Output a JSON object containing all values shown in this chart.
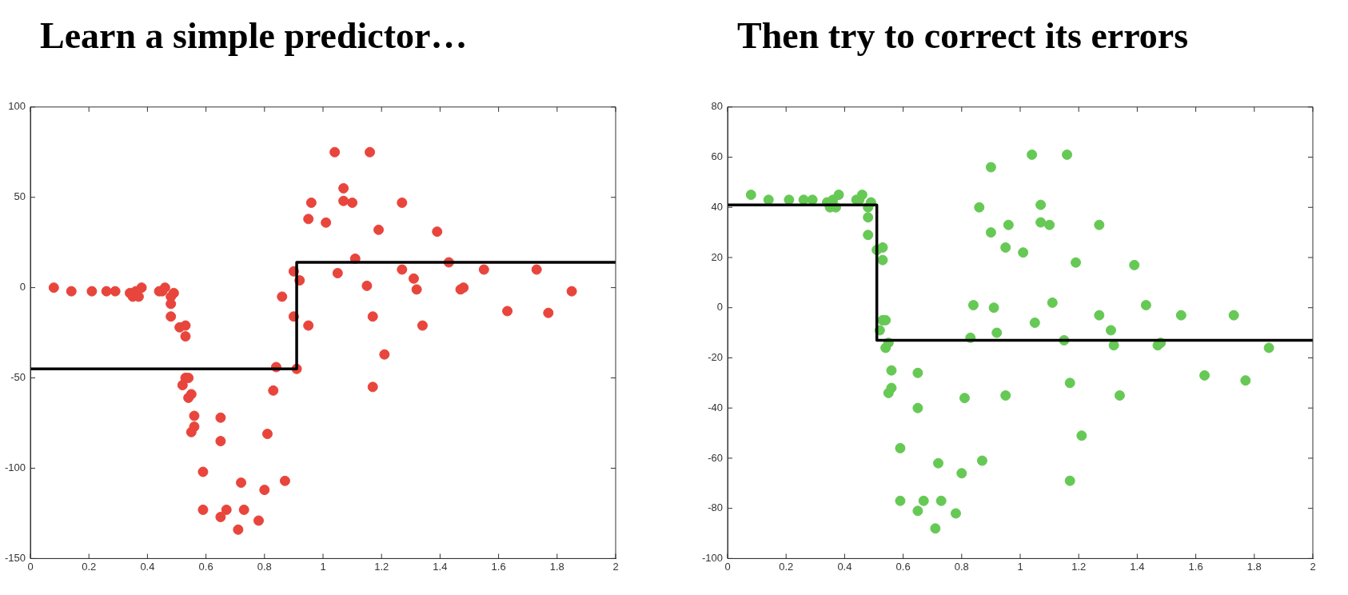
{
  "chart_data": [
    {
      "type": "scatter",
      "title": "Learn a simple predictor…",
      "marker": "circle",
      "grid": false,
      "legend": false,
      "xlim": [
        0,
        2
      ],
      "xticks": [
        0,
        0.2,
        0.4,
        0.6,
        0.8,
        1,
        1.2,
        1.4,
        1.6,
        1.8,
        2
      ],
      "ylim": [
        -150,
        100
      ],
      "yticks": [
        -150,
        -100,
        -50,
        0,
        50,
        100
      ],
      "series": [
        {
          "type": "scatter",
          "color": "#e8453c",
          "x": [
            0.08,
            0.14,
            0.21,
            0.26,
            0.29,
            0.34,
            0.35,
            0.36,
            0.37,
            0.38,
            0.44,
            0.45,
            0.46,
            0.49,
            0.48,
            0.48,
            0.48,
            0.51,
            0.53,
            0.53,
            0.52,
            0.53,
            0.54,
            0.54,
            0.55,
            0.56,
            0.56,
            0.55,
            0.59,
            0.59,
            0.65,
            0.65,
            0.65,
            0.67,
            0.71,
            0.72,
            0.73,
            0.78,
            0.8,
            0.81,
            0.83,
            0.84,
            0.86,
            0.87,
            0.9,
            0.9,
            0.91,
            0.92,
            0.95,
            0.95,
            0.96,
            1.01,
            1.04,
            1.05,
            1.07,
            1.07,
            1.1,
            1.11,
            1.15,
            1.16,
            1.17,
            1.17,
            1.19,
            1.21,
            1.27,
            1.27,
            1.31,
            1.32,
            1.34,
            1.39,
            1.43,
            1.47,
            1.48,
            1.55,
            1.63,
            1.73,
            1.77,
            1.85
          ],
          "values": [
            0,
            -2,
            -2,
            -2,
            -2,
            -3,
            -5,
            -2,
            -5,
            0,
            -2,
            -2,
            0,
            -3,
            -5,
            -9,
            -16,
            -22,
            -21,
            -27,
            -54,
            -50,
            -50,
            -61,
            -59,
            -71,
            -77,
            -80,
            -102,
            -123,
            -72,
            -85,
            -127,
            -123,
            -134,
            -108,
            -123,
            -129,
            -112,
            -81,
            -57,
            -44,
            -5,
            -107,
            -16,
            9,
            -45,
            4,
            -21,
            38,
            47,
            36,
            75,
            8,
            55,
            48,
            47,
            16,
            1,
            75,
            -16,
            -55,
            32,
            -37,
            10,
            47,
            5,
            -1,
            -21,
            31,
            14,
            -1,
            0,
            10,
            -13,
            10,
            -14,
            -2
          ]
        },
        {
          "type": "step",
          "marker": "none",
          "color": "#000000",
          "x": [
            0,
            0.91,
            2
          ],
          "values": [
            -45,
            14,
            14
          ]
        }
      ]
    },
    {
      "type": "scatter",
      "title": "Then try to correct its errors",
      "marker": "circle",
      "grid": false,
      "legend": false,
      "xlim": [
        0,
        2
      ],
      "xticks": [
        0,
        0.2,
        0.4,
        0.6,
        0.8,
        1,
        1.2,
        1.4,
        1.6,
        1.8,
        2
      ],
      "ylim": [
        -100,
        80
      ],
      "yticks": [
        -100,
        -80,
        -60,
        -40,
        -20,
        0,
        20,
        40,
        60,
        80
      ],
      "series": [
        {
          "type": "scatter",
          "color": "#66c955",
          "x": [
            0.08,
            0.14,
            0.21,
            0.26,
            0.29,
            0.34,
            0.35,
            0.36,
            0.37,
            0.38,
            0.44,
            0.45,
            0.46,
            0.49,
            0.48,
            0.48,
            0.48,
            0.51,
            0.53,
            0.53,
            0.52,
            0.53,
            0.54,
            0.54,
            0.55,
            0.56,
            0.56,
            0.55,
            0.59,
            0.59,
            0.65,
            0.65,
            0.65,
            0.67,
            0.71,
            0.72,
            0.73,
            0.78,
            0.8,
            0.81,
            0.83,
            0.84,
            0.86,
            0.87,
            0.9,
            0.9,
            0.91,
            0.92,
            0.95,
            0.95,
            0.96,
            1.01,
            1.04,
            1.05,
            1.07,
            1.07,
            1.1,
            1.11,
            1.15,
            1.16,
            1.17,
            1.17,
            1.19,
            1.21,
            1.27,
            1.27,
            1.31,
            1.32,
            1.34,
            1.39,
            1.43,
            1.47,
            1.48,
            1.55,
            1.63,
            1.73,
            1.77,
            1.85
          ],
          "values": [
            45,
            43,
            43,
            43,
            43,
            42,
            40,
            43,
            40,
            45,
            43,
            43,
            45,
            42,
            40,
            36,
            29,
            23,
            24,
            19,
            -9,
            -5,
            -5,
            -16,
            -14,
            -25,
            -32,
            -34,
            -56,
            -77,
            -26,
            -40,
            -81,
            -77,
            -88,
            -62,
            -77,
            -82,
            -66,
            -36,
            -12,
            1,
            40,
            -61,
            30,
            56,
            0,
            -10,
            -35,
            24,
            33,
            22,
            61,
            -6,
            41,
            34,
            33,
            2,
            -13,
            61,
            -30,
            -69,
            18,
            -51,
            -3,
            33,
            -9,
            -15,
            -35,
            17,
            1,
            -15,
            -14,
            -3,
            -27,
            -3,
            -29,
            -16
          ]
        },
        {
          "type": "step",
          "marker": "none",
          "color": "#000000",
          "x": [
            0,
            0.51,
            2
          ],
          "values": [
            41,
            -13,
            -13
          ]
        }
      ]
    }
  ]
}
